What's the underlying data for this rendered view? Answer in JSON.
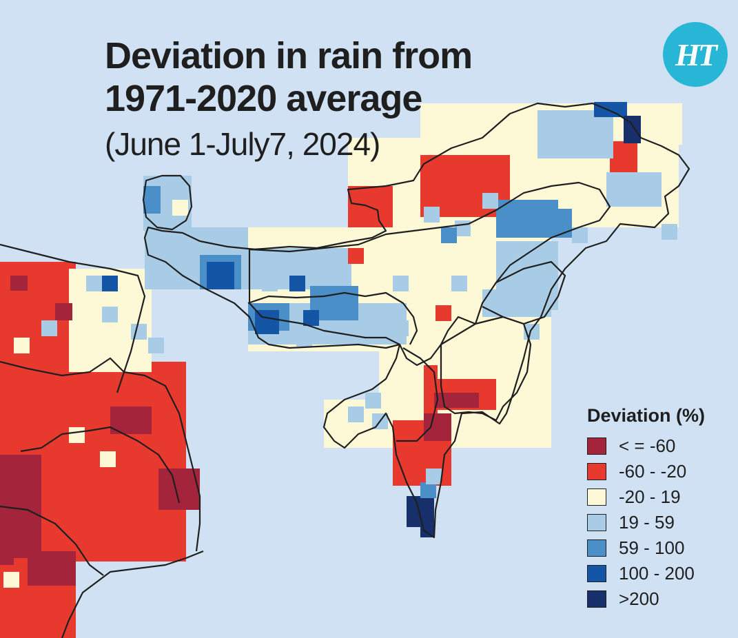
{
  "header": {
    "title_line1": "Deviation in rain from",
    "title_line2": "1971-2020 average",
    "subtitle": "(June 1-July7, 2024)"
  },
  "logo": {
    "text": "HT",
    "color": "#27b6d6"
  },
  "legend": {
    "title": "Deviation (%)",
    "items": [
      {
        "label": "< = -60",
        "color": "#a4243b"
      },
      {
        "label": "-60 - -20",
        "color": "#e8392f"
      },
      {
        "label": "-20 - 19",
        "color": "#fdf9d6"
      },
      {
        "label": "19 - 59",
        "color": "#a8cce6"
      },
      {
        "label": "59 - 100",
        "color": "#4a8fc7"
      },
      {
        "label": "100 - 200",
        "color": "#1555a6"
      },
      {
        "label": ">200",
        "color": "#172f6a"
      }
    ]
  },
  "colors": {
    "sea": "#cfe1f3",
    "border": "#1f1f1f"
  }
}
